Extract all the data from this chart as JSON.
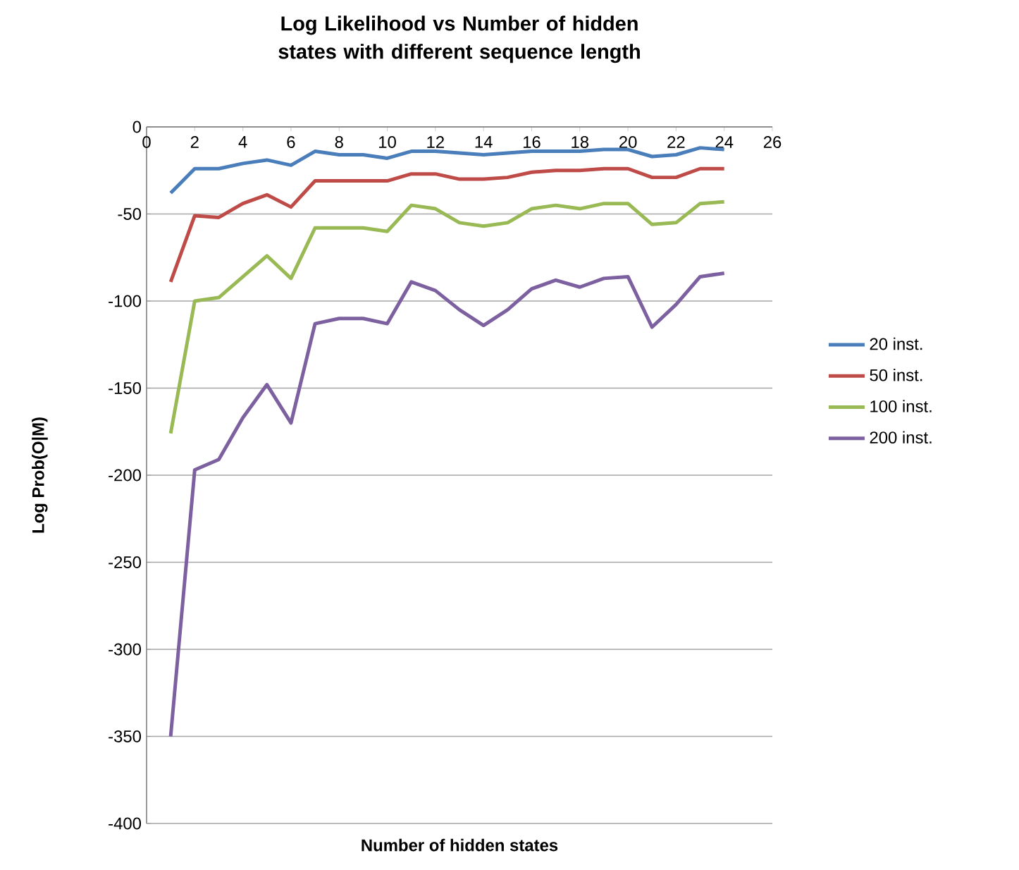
{
  "chart_data": {
    "type": "line",
    "title": "Log Likelihood vs Number of hidden states with different sequence length",
    "xlabel": "Number of hidden states",
    "ylabel": "Log Prob(O|M)",
    "x": [
      1,
      2,
      3,
      4,
      5,
      6,
      7,
      8,
      9,
      10,
      11,
      12,
      13,
      14,
      15,
      16,
      17,
      18,
      19,
      20,
      21,
      22,
      23,
      24
    ],
    "series": [
      {
        "name": "20 inst.",
        "color": "#4a7ebb",
        "values": [
          -38,
          -24,
          -24,
          -21,
          -19,
          -22,
          -14,
          -16,
          -16,
          -18,
          -14,
          -14,
          -15,
          -16,
          -15,
          -14,
          -14,
          -14,
          -13,
          -13,
          -17,
          -16,
          -12,
          -13
        ]
      },
      {
        "name": "50 inst.",
        "color": "#be4b48",
        "values": [
          -89,
          -51,
          -52,
          -44,
          -39,
          -46,
          -31,
          -31,
          -31,
          -31,
          -27,
          -27,
          -30,
          -30,
          -29,
          -26,
          -25,
          -25,
          -24,
          -24,
          -29,
          -29,
          -24,
          -24
        ]
      },
      {
        "name": "100 inst.",
        "color": "#98b954",
        "values": [
          -176,
          -100,
          -98,
          -86,
          -74,
          -87,
          -58,
          -58,
          -58,
          -60,
          -45,
          -47,
          -55,
          -57,
          -55,
          -47,
          -45,
          -47,
          -44,
          -44,
          -56,
          -55,
          -44,
          -43
        ]
      },
      {
        "name": "200 inst.",
        "color": "#7d60a0",
        "values": [
          -350,
          -197,
          -191,
          -167,
          -148,
          -170,
          -113,
          -110,
          -110,
          -113,
          -89,
          -94,
          -105,
          -114,
          -105,
          -93,
          -88,
          -92,
          -87,
          -86,
          -115,
          -102,
          -86,
          -84
        ]
      }
    ],
    "xlim": [
      0,
      26
    ],
    "xticks": [
      0,
      2,
      4,
      6,
      8,
      10,
      12,
      14,
      16,
      18,
      20,
      22,
      24,
      26
    ],
    "ylim": [
      -400,
      0
    ],
    "yticks": [
      -400,
      -350,
      -300,
      -250,
      -200,
      -150,
      -100,
      -50,
      0
    ],
    "grid": "y",
    "legend": "right"
  }
}
